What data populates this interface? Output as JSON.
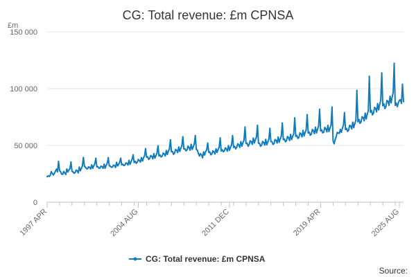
{
  "chart_data": {
    "type": "line",
    "title": "CG: Total revenue: £m CPNSA",
    "ylabel": "£m",
    "xlabel": "",
    "ylim": [
      0,
      150000
    ],
    "y_ticks": [
      0,
      50000,
      100000,
      150000
    ],
    "y_tick_labels": [
      "0",
      "50 000",
      "100 000",
      "150 000"
    ],
    "x_ticks": [
      "1997 APR",
      "2004 AUG",
      "2011 DEC",
      "2019 APR",
      "2025 AUG"
    ],
    "x_tick_positions": [
      0,
      88,
      176,
      264,
      340
    ],
    "grid": true,
    "legend_position": "bottom",
    "series": [
      {
        "name": "CG: Total revenue: £m CPNSA",
        "color": "#0f7cbf",
        "start": "1997 APR",
        "frequency": "monthly",
        "values": [
          22500,
          23200,
          22700,
          23800,
          26900,
          25400,
          24000,
          25400,
          27300,
          29100,
          26800,
          36000,
          27800,
          26800,
          24700,
          24600,
          27000,
          25800,
          24500,
          29200,
          26700,
          28400,
          29600,
          35400,
          27300,
          26700,
          25500,
          26100,
          28200,
          27600,
          25900,
          30900,
          27700,
          29700,
          31900,
          39300,
          31700,
          30800,
          29600,
          29400,
          31100,
          30700,
          29400,
          32800,
          29800,
          32000,
          33900,
          38700,
          31100,
          31200,
          30000,
          30100,
          31700,
          31300,
          29900,
          33400,
          30000,
          32600,
          34300,
          39200,
          32100,
          31700,
          30800,
          31000,
          32600,
          32200,
          30700,
          35100,
          31900,
          33300,
          35200,
          38700,
          32900,
          33400,
          32300,
          32700,
          34500,
          34200,
          32800,
          36800,
          33400,
          35700,
          37900,
          41600,
          35000,
          36000,
          34300,
          35300,
          37600,
          36700,
          35400,
          39300,
          36300,
          39100,
          40700,
          47100,
          39700,
          39900,
          37800,
          38600,
          41100,
          40300,
          38300,
          42700,
          38900,
          41000,
          43300,
          49700,
          40800,
          41500,
          39900,
          40500,
          43200,
          42500,
          40800,
          45500,
          42100,
          45100,
          46800,
          54900,
          44600,
          44600,
          42200,
          43300,
          46400,
          45700,
          43800,
          48600,
          44800,
          47500,
          49600,
          57600,
          46900,
          47000,
          45300,
          46000,
          49300,
          48100,
          45900,
          50900,
          46600,
          48700,
          51300,
          58600,
          46600,
          45800,
          42900,
          40700,
          42700,
          41700,
          39200,
          44200,
          41600,
          44700,
          46100,
          52100,
          44000,
          44200,
          41800,
          42600,
          45200,
          44300,
          42600,
          47000,
          43900,
          46400,
          48200,
          56600,
          45200,
          46100,
          44500,
          45100,
          47800,
          46900,
          45000,
          49800,
          45800,
          48400,
          50400,
          58600,
          48300,
          49100,
          47000,
          48400,
          51400,
          50400,
          48400,
          53300,
          49400,
          52400,
          54600,
          66200,
          51700,
          51900,
          49400,
          50800,
          54100,
          53300,
          51100,
          56400,
          52200,
          55000,
          57300,
          67600,
          52000,
          51900,
          49300,
          50200,
          53500,
          52500,
          50300,
          55300,
          50600,
          53100,
          55400,
          65000,
          53400,
          53200,
          51000,
          51600,
          55100,
          54400,
          52200,
          57300,
          52900,
          55800,
          58100,
          69700,
          55100,
          55600,
          53300,
          54100,
          57800,
          56800,
          54400,
          59600,
          55200,
          58000,
          60200,
          74200,
          58100,
          58700,
          56300,
          57000,
          61000,
          60100,
          57600,
          63200,
          58400,
          61400,
          63800,
          77000,
          61000,
          61700,
          59000,
          59900,
          64000,
          63000,
          60400,
          66000,
          61100,
          64300,
          67000,
          81700,
          62800,
          63600,
          61100,
          61800,
          65800,
          64500,
          62000,
          67600,
          62300,
          65200,
          68000,
          83800,
          54000,
          51500,
          55100,
          57600,
          61400,
          61000,
          60600,
          64000,
          61600,
          65100,
          67700,
          78800,
          64000,
          64900,
          62400,
          63500,
          67600,
          67100,
          64600,
          70400,
          65800,
          69300,
          72000,
          98400,
          70900,
          72800,
          69500,
          70800,
          75200,
          74600,
          71800,
          78400,
          73400,
          77600,
          80600,
          110800,
          79300,
          80800,
          77000,
          78400,
          83400,
          82700,
          79600,
          86800,
          81400,
          86000,
          89800,
          113800,
          85000,
          86600,
          82500,
          84200,
          89500,
          88800,
          85400,
          93300,
          87500,
          92500,
          96600,
          122300,
          85300,
          87200,
          84200,
          87500,
          89800,
          90200,
          87100,
          103800,
          88600
        ]
      }
    ],
    "source_label": "Source:"
  }
}
